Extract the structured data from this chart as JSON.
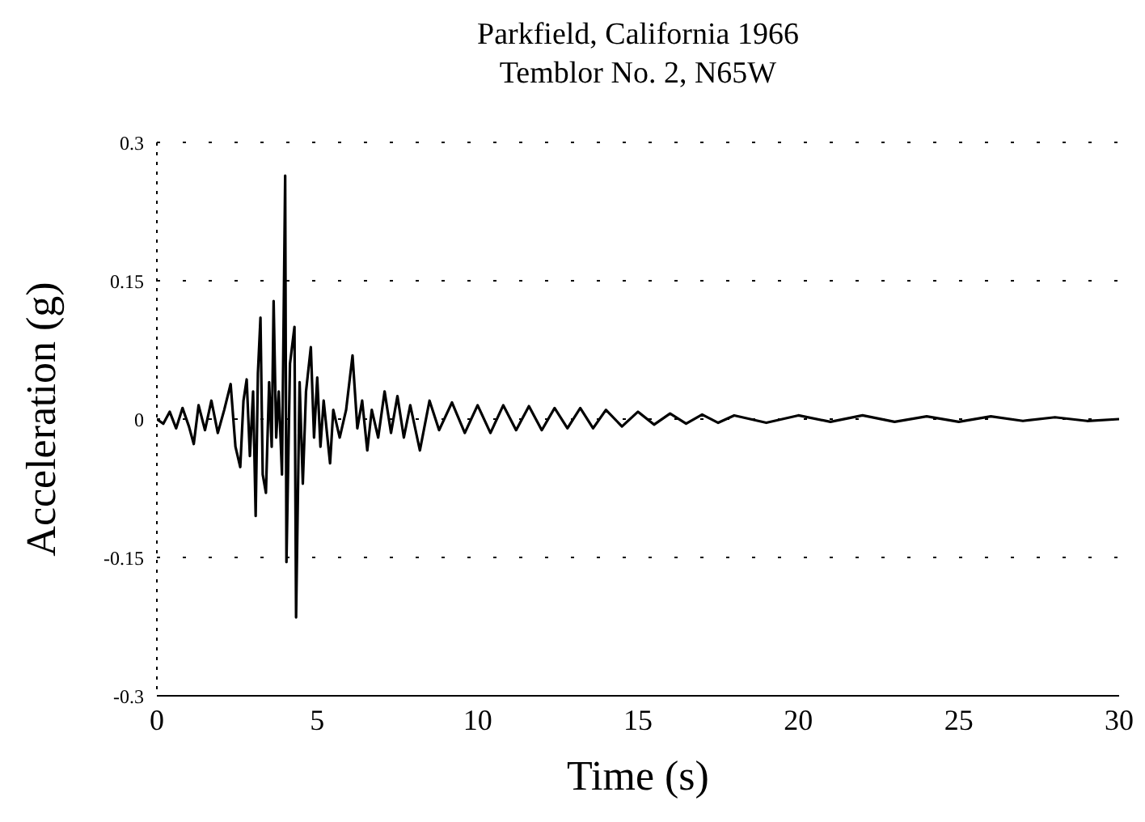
{
  "chart_data": {
    "type": "line",
    "title": "Parkfield, California 1966",
    "subtitle": "Temblor No. 2, N65W",
    "xlabel": "Time (s)",
    "ylabel": "Acceleration (g)",
    "x": [
      0,
      0.2,
      0.4,
      0.6,
      0.8,
      1.0,
      1.15,
      1.3,
      1.5,
      1.7,
      1.9,
      2.1,
      2.3,
      2.45,
      2.6,
      2.7,
      2.8,
      2.9,
      3.0,
      3.08,
      3.15,
      3.23,
      3.3,
      3.4,
      3.5,
      3.58,
      3.64,
      3.72,
      3.8,
      3.9,
      4.0,
      4.04,
      4.15,
      4.29,
      4.34,
      4.45,
      4.55,
      4.65,
      4.8,
      4.9,
      5.0,
      5.1,
      5.2,
      5.4,
      5.5,
      5.7,
      5.9,
      6.1,
      6.25,
      6.4,
      6.56,
      6.7,
      6.9,
      7.1,
      7.3,
      7.5,
      7.7,
      7.9,
      8.2,
      8.5,
      8.8,
      9.2,
      9.6,
      10,
      10.4,
      10.8,
      11.2,
      11.6,
      12,
      12.4,
      12.8,
      13.2,
      13.6,
      14,
      14.5,
      15,
      15.5,
      16,
      16.5,
      17,
      17.5,
      18,
      19,
      20,
      21,
      22,
      23,
      24,
      25,
      26,
      27,
      28,
      29,
      30
    ],
    "series": [
      {
        "color": "#000000",
        "values": [
          0,
          -0.005,
          0.008,
          -0.01,
          0.012,
          -0.008,
          -0.027,
          0.015,
          -0.012,
          0.02,
          -0.015,
          0.01,
          0.038,
          -0.03,
          -0.052,
          0.02,
          0.043,
          -0.04,
          0.03,
          -0.105,
          0.05,
          0.11,
          -0.06,
          -0.08,
          0.04,
          -0.03,
          0.128,
          -0.02,
          0.03,
          -0.06,
          0.264,
          -0.155,
          0.06,
          0.1,
          -0.215,
          0.04,
          -0.07,
          0.03,
          0.078,
          -0.02,
          0.045,
          -0.03,
          0.02,
          -0.048,
          0.01,
          -0.02,
          0.01,
          0.069,
          -0.01,
          0.02,
          -0.034,
          0.01,
          -0.02,
          0.03,
          -0.015,
          0.025,
          -0.02,
          0.015,
          -0.034,
          0.02,
          -0.012,
          0.018,
          -0.015,
          0.015,
          -0.015,
          0.015,
          -0.012,
          0.014,
          -0.012,
          0.012,
          -0.01,
          0.012,
          -0.01,
          0.01,
          -0.008,
          0.008,
          -0.006,
          0.006,
          -0.005,
          0.005,
          -0.004,
          0.004,
          -0.004,
          0.004,
          -0.003,
          0.004,
          -0.003,
          0.003,
          -0.003,
          0.003,
          -0.002,
          0.002,
          -0.002,
          0
        ]
      }
    ],
    "xlim": [
      0,
      30
    ],
    "xticks": [
      0,
      5,
      10,
      15,
      20,
      25,
      30
    ],
    "ylim": [
      -0.3,
      0.3
    ],
    "yticks": [
      -0.3,
      -0.15,
      0,
      0.15,
      0.3
    ],
    "grid": "y",
    "marker": "none",
    "line_style": "solid",
    "legend": false
  }
}
